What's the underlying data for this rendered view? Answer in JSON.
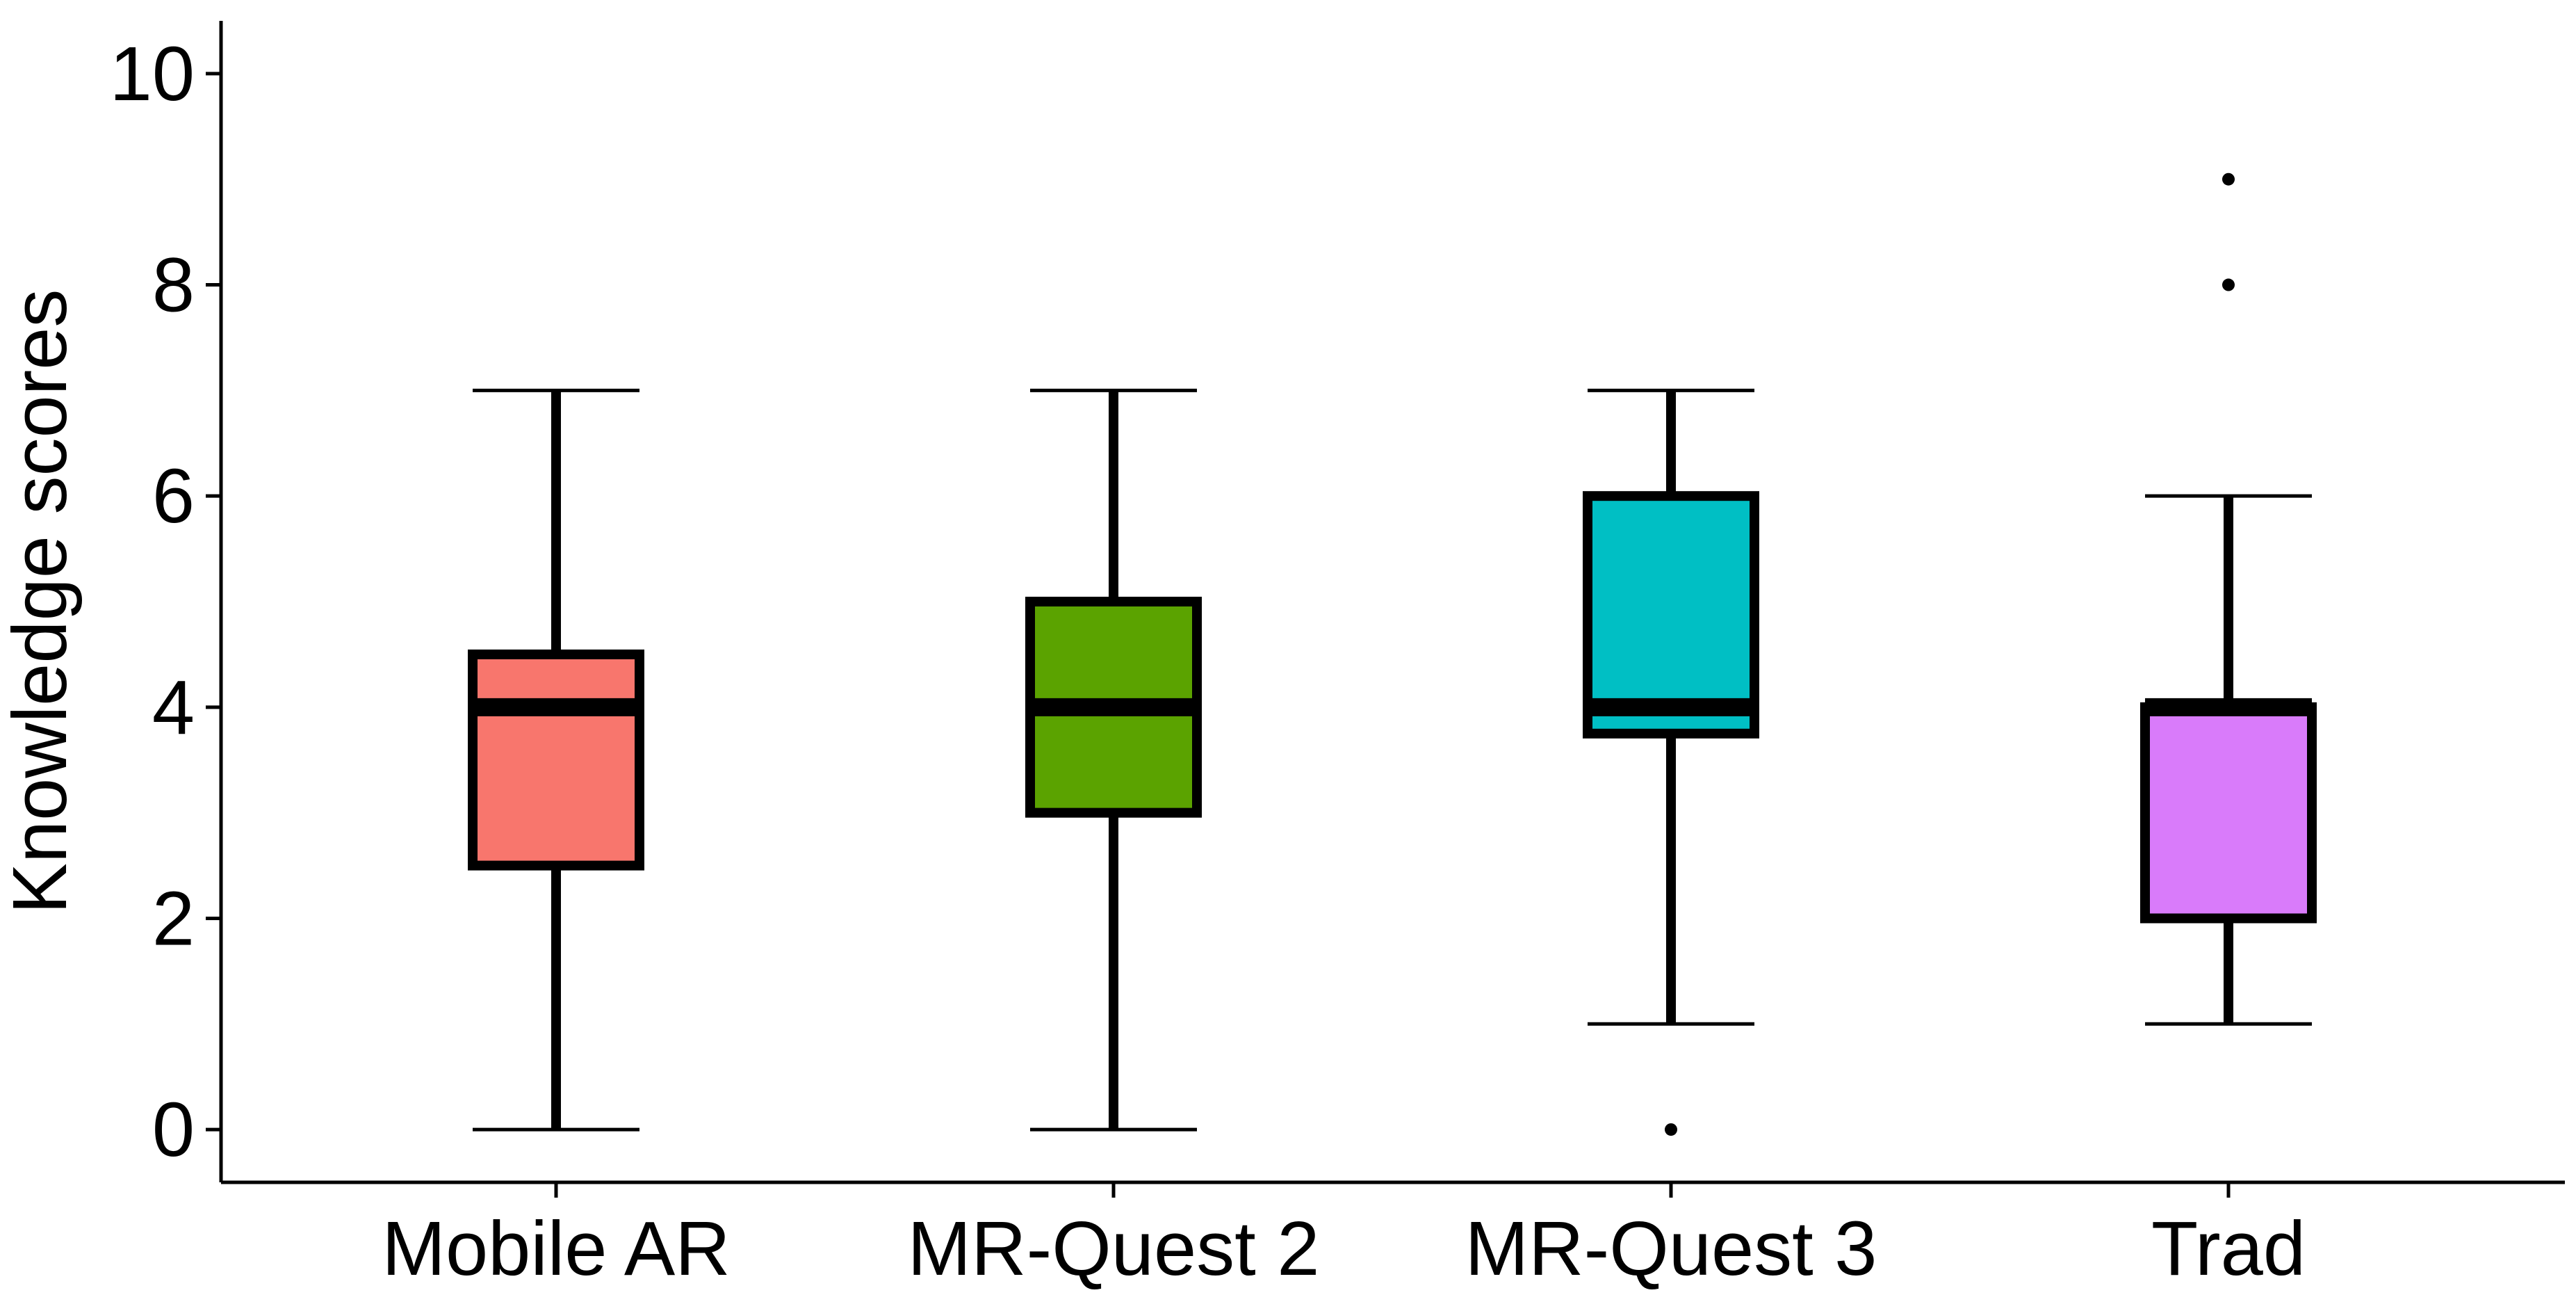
{
  "chart_data": {
    "type": "box",
    "title": "",
    "xlabel": "",
    "ylabel": "Knowledge scores",
    "ylim": [
      -0.5,
      10.5
    ],
    "yticks": [
      0,
      2,
      4,
      6,
      8,
      10
    ],
    "y_tick_labels": [
      "0",
      "2",
      "4",
      "6",
      "8",
      "10"
    ],
    "grid": false,
    "legend": "none",
    "categories": [
      "Mobile AR",
      "MR-Quest 2",
      "MR-Quest 3",
      "Trad"
    ],
    "series": [
      {
        "category": "Mobile AR",
        "min": 0,
        "q1": 2.5,
        "median": 4,
        "q3": 4.5,
        "max": 7,
        "outliers": [],
        "color": "#F8766D"
      },
      {
        "category": "MR-Quest 2",
        "min": 0,
        "q1": 3,
        "median": 4,
        "q3": 5,
        "max": 7,
        "outliers": [],
        "color": "#5BA300"
      },
      {
        "category": "MR-Quest 3",
        "min": 1,
        "q1": 3.75,
        "median": 4,
        "q3": 6,
        "max": 7,
        "outliers": [
          0
        ],
        "color": "#00BFC4"
      },
      {
        "category": "Trad",
        "min": 1,
        "q1": 2,
        "median": 4,
        "q3": 4,
        "max": 6,
        "outliers": [
          8,
          9
        ],
        "color": "#D97BFA"
      }
    ]
  }
}
